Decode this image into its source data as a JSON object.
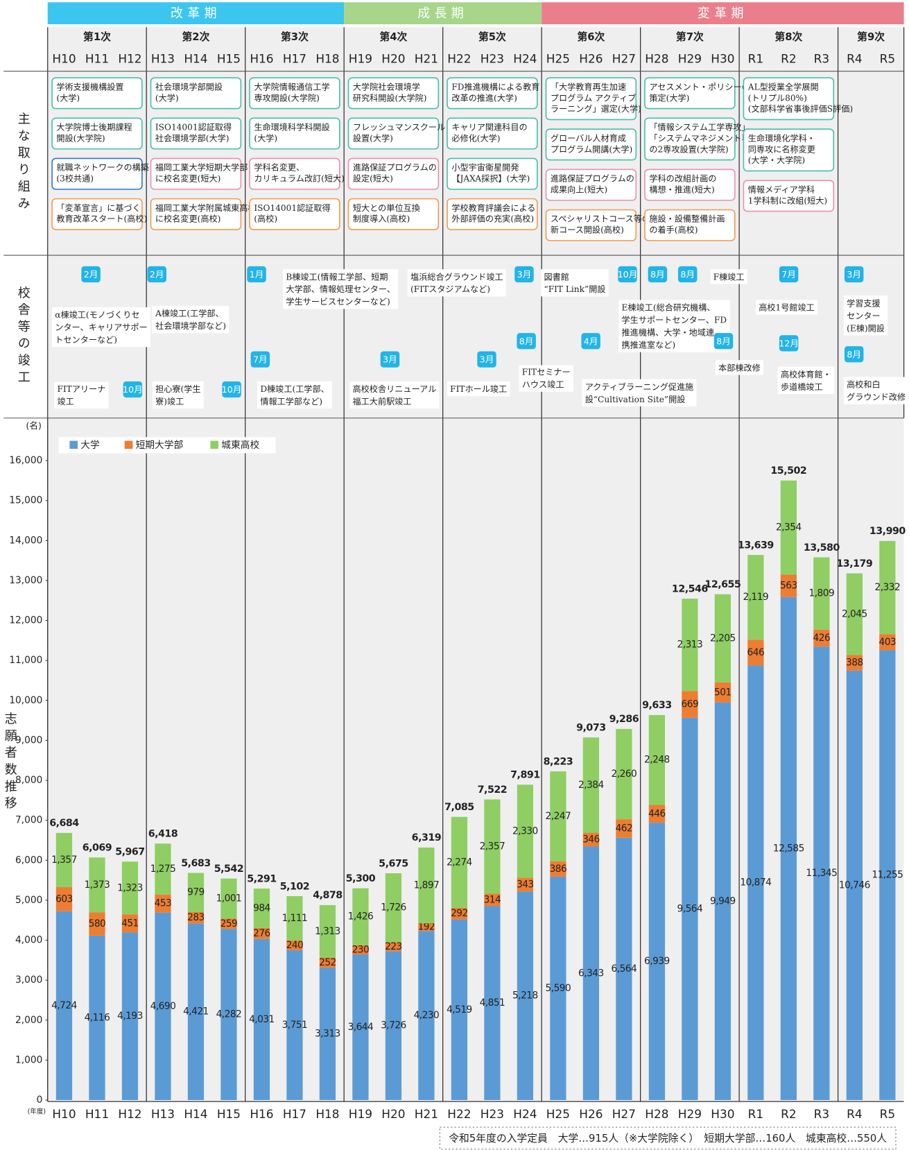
{
  "periods": [
    {
      "name": "改革期",
      "color": "#3cc6ef",
      "phases": [
        "第1次",
        "第2次",
        "第3次"
      ]
    },
    {
      "name": "成長期",
      "color": "#a7d58a",
      "phases": [
        "第4次",
        "第5次"
      ]
    },
    {
      "name": "変革期",
      "color": "#ea7f8b",
      "phases": [
        "第6次",
        "第7次",
        "第8次",
        "第9次"
      ]
    }
  ],
  "initiatives_label": "主な取り組み",
  "phases": [
    {
      "name": "第1次",
      "years": [
        "H10",
        "H11",
        "H12"
      ],
      "initiatives": [
        {
          "lines": [
            "学術支援機構設置",
            "(大学)"
          ],
          "color": "#45bfa9"
        },
        {
          "lines": [
            "大学院博士後期課程",
            "開設(大学院)"
          ],
          "color": "#45bfa9"
        },
        {
          "lines": [
            "就職ネットワークの構築",
            "(3校共通)"
          ],
          "color": "#2f78c2"
        },
        {
          "lines": [
            "「変革宣言」に基づく",
            "教育改革スタート(高校)"
          ],
          "color": "#f29a4a"
        }
      ]
    },
    {
      "name": "第2次",
      "years": [
        "H13",
        "H14",
        "H15"
      ],
      "initiatives": [
        {
          "lines": [
            "社会環境学部開設",
            "(大学)"
          ],
          "color": "#45bfa9"
        },
        {
          "lines": [
            "ISO14001認証取得",
            "社会環境学部(大学)"
          ],
          "color": "#45bfa9"
        },
        {
          "lines": [
            "福岡工業大学短期大学部",
            "に校名変更(短大)"
          ],
          "color": "#e98fb0"
        },
        {
          "lines": [
            "福岡工業大学附属城東高校",
            "に校名変更(高校)"
          ],
          "color": "#f29a4a"
        }
      ]
    },
    {
      "name": "第3次",
      "years": [
        "H16",
        "H17",
        "H18"
      ],
      "initiatives": [
        {
          "lines": [
            "大学院情報通信工学",
            "専攻開設(大学院)"
          ],
          "color": "#45bfa9"
        },
        {
          "lines": [
            "生命環境科学科開設",
            "(大学)"
          ],
          "color": "#45bfa9"
        },
        {
          "lines": [
            "学科名変更、",
            "カリキュラム改訂(短大)"
          ],
          "color": "#e98fb0"
        },
        {
          "lines": [
            "ISO14001認証取得",
            "(高校)"
          ],
          "color": "#f29a4a"
        }
      ]
    },
    {
      "name": "第4次",
      "years": [
        "H19",
        "H20",
        "H21"
      ],
      "initiatives": [
        {
          "lines": [
            "大学院社会環境学",
            "研究科開設(大学院)"
          ],
          "color": "#45bfa9"
        },
        {
          "lines": [
            "フレッシュマンスクール",
            "設置(大学)"
          ],
          "color": "#45bfa9"
        },
        {
          "lines": [
            "進路保証プログラムの",
            "設定(短大)"
          ],
          "color": "#e98fb0"
        },
        {
          "lines": [
            "短大との単位互換",
            "制度導入(高校)"
          ],
          "color": "#f29a4a"
        }
      ]
    },
    {
      "name": "第5次",
      "years": [
        "H22",
        "H23",
        "H24"
      ],
      "initiatives": [
        {
          "lines": [
            "FD推進機構による教育",
            "改革の推進(大学)"
          ],
          "color": "#45bfa9"
        },
        {
          "lines": [
            "キャリア関連科目の",
            "必修化(大学)"
          ],
          "color": "#45bfa9"
        },
        {
          "lines": [
            "小型宇宙衛星開発",
            "【JAXA採択】(大学)"
          ],
          "color": "#45bfa9"
        },
        {
          "lines": [
            "学校教育評議会による",
            "外部評価の充実(高校)"
          ],
          "color": "#f29a4a"
        }
      ]
    },
    {
      "name": "第6次",
      "years": [
        "H25",
        "H26",
        "H27"
      ],
      "initiatives": [
        {
          "lines": [
            "「大学教育再生加速",
            "プログラム アクティブ",
            "ラーニング」選定(大学)"
          ],
          "color": "#45bfa9"
        },
        {
          "lines": [
            "グローバル人材育成",
            "プログラム開講(大学)"
          ],
          "color": "#45bfa9"
        },
        {
          "lines": [
            "進路保証プログラムの",
            "成果向上(短大)"
          ],
          "color": "#e98fb0"
        },
        {
          "lines": [
            "スペシャリストコース等の",
            "新コース開設(高校)"
          ],
          "color": "#f29a4a"
        }
      ]
    },
    {
      "name": "第7次",
      "years": [
        "H28",
        "H29",
        "H30"
      ],
      "initiatives": [
        {
          "lines": [
            "アセスメント・ポリシーの",
            "策定(大学)"
          ],
          "color": "#45bfa9"
        },
        {
          "lines": [
            "「情報システム工学専攻」、",
            "「システムマネジメント専攻」",
            "の2専攻設置(大学院)"
          ],
          "color": "#45bfa9"
        },
        {
          "lines": [
            "学科の改組計画の",
            "構想・推進(短大)"
          ],
          "color": "#e98fb0"
        },
        {
          "lines": [
            "施設・設備整備計画",
            "の着手(高校)"
          ],
          "color": "#f29a4a"
        }
      ]
    },
    {
      "name": "第8次",
      "years": [
        "R1",
        "R2",
        "R3"
      ],
      "initiatives": [
        {
          "lines": [
            "AL型授業全学展開",
            "(トリプル80%)",
            "(文部科学省事後評価S評価)"
          ],
          "color": "#45bfa9"
        },
        {
          "lines": [
            "生命環境化学科・",
            "同専攻に名称変更",
            "(大学・大学院)"
          ],
          "color": "#45bfa9"
        },
        {
          "lines": [
            "情報メディア学科",
            "1学科制に改組(短大)"
          ],
          "color": "#e98fb0"
        }
      ]
    },
    {
      "name": "第9次",
      "years": [
        "R4",
        "R5"
      ],
      "initiatives": []
    }
  ],
  "construction": {
    "label": "校舎等の竣工",
    "items": [
      {
        "month": "2月",
        "lines": [
          "α棟竣工(モノづくりセ",
          "ンター、キャリアサポー",
          "トセンターなど)"
        ]
      },
      {
        "month": "10月",
        "lines": [
          "FITアリーナ",
          "竣工"
        ]
      },
      {
        "month": "2月",
        "lines": [
          "A棟竣工(工学部、",
          "社会環境学部など)"
        ]
      },
      {
        "month": "10月",
        "lines": [
          "担心寮(学生",
          "寮)竣工"
        ]
      },
      {
        "month": "1月",
        "lines": [
          "B棟竣工(情報工学部、短期",
          "大学部、情報処理センター、",
          "学生サービスセンターなど)"
        ]
      },
      {
        "month": "7月",
        "lines": [
          "D棟竣工(工学部、",
          "情報工学部など)"
        ]
      },
      {
        "month": "3月",
        "lines": [
          "塩浜総合グラウンド竣工",
          "(FITスタジアムなど)"
        ]
      },
      {
        "month": "3月",
        "lines": [
          "高校校舎リニューアル",
          "福工大前駅竣工"
        ]
      },
      {
        "month": "3月",
        "lines": [
          "FITホール竣工"
        ]
      },
      {
        "month": "8月",
        "lines": [
          "FITセミナー",
          "ハウス竣工"
        ]
      },
      {
        "month": "10月",
        "lines": [
          "図書館",
          "“FIT Link”開設"
        ]
      },
      {
        "month": "4月",
        "lines": [
          "アクティブラーニング促進施",
          "設“Cultivation Site”開設"
        ]
      },
      {
        "month": "8月",
        "lines": [
          "E棟竣工(総合研究機構、",
          "学生サポートセンター、FD",
          "推進機構、大学・地域連",
          "携推進室など)"
        ]
      },
      {
        "month": "8月",
        "lines": [
          "F棟竣工"
        ]
      },
      {
        "month": "8月",
        "lines": [
          "本部棟改修"
        ]
      },
      {
        "month": "7月",
        "lines": [
          "高校1号館竣工"
        ]
      },
      {
        "month": "12月",
        "lines": [
          "高校体育館・",
          "歩道橋竣工"
        ]
      },
      {
        "month": "3月",
        "lines": [
          "学習支援",
          "センター",
          "(E棟)開設"
        ]
      },
      {
        "month": "8月",
        "lines": [
          "高校和白",
          "グラウンド改修"
        ]
      }
    ]
  },
  "chart_data": {
    "type": "stacked_bar",
    "y_label": "志願者数推移",
    "y_unit": "(名)",
    "x_unit": "(年度)",
    "legend": "top-left",
    "grid": false,
    "categories": [
      "H10",
      "H11",
      "H12",
      "H13",
      "H14",
      "H15",
      "H16",
      "H17",
      "H18",
      "H19",
      "H20",
      "H21",
      "H22",
      "H23",
      "H24",
      "H25",
      "H26",
      "H27",
      "H28",
      "H29",
      "H30",
      "R1",
      "R2",
      "R3",
      "R4",
      "R5"
    ],
    "ylim": [
      0,
      17000
    ],
    "yticks": [
      0,
      {
        "value": 1000,
        "label": "1,000"
      },
      {
        "value": 2000,
        "label": "2,000"
      },
      {
        "value": 3000,
        "label": "3,000"
      },
      {
        "value": 4000,
        "label": "4,000"
      },
      {
        "value": 5000,
        "label": "5,000"
      },
      {
        "value": 6000,
        "label": "6,000"
      },
      {
        "value": 7000,
        "label": "7,000"
      },
      {
        "value": 8000,
        "label": "8,000"
      },
      {
        "value": 9000,
        "label": "9,000"
      },
      {
        "value": 10000,
        "label": "10,000"
      },
      {
        "value": 11000,
        "label": "11,000"
      },
      {
        "value": 12000,
        "label": "12,000"
      },
      {
        "value": 13000,
        "label": "13,000"
      },
      {
        "value": 14000,
        "label": "14,000"
      },
      {
        "value": 15000,
        "label": "15,000"
      },
      {
        "value": 16000,
        "label": "16,000"
      }
    ],
    "series": [
      {
        "name": "大学",
        "color": "#5b9bd5",
        "values": [
          4724,
          4116,
          4193,
          4690,
          4421,
          4282,
          4031,
          3751,
          3313,
          3644,
          3726,
          4230,
          4519,
          4851,
          5218,
          5590,
          6343,
          6564,
          6939,
          9564,
          9949,
          10874,
          12585,
          11345,
          10746,
          11255
        ],
        "value_labels": [
          "4,724",
          "4,116",
          "4,193",
          "4,690",
          "4,421",
          "4,282",
          "4,031",
          "3,751",
          "3,313",
          "3,644",
          "3,726",
          "4,230",
          "4,519",
          "4,851",
          "5,218",
          "5,590",
          "6,343",
          "6,564",
          "6,939",
          "9,564",
          "9,949",
          "10,874",
          "12,585",
          "11,345",
          "10,746",
          "11,255"
        ]
      },
      {
        "name": "短期大学部",
        "color": "#ed7d31",
        "values": [
          603,
          580,
          451,
          453,
          283,
          259,
          276,
          240,
          252,
          230,
          223,
          192,
          292,
          314,
          343,
          386,
          346,
          462,
          446,
          669,
          501,
          646,
          563,
          426,
          388,
          403
        ]
      },
      {
        "name": "城東高校",
        "color": "#8fce63",
        "values": [
          1357,
          1373,
          1323,
          1275,
          979,
          1001,
          984,
          1111,
          1313,
          1426,
          1726,
          1897,
          2274,
          2357,
          2330,
          2247,
          2384,
          2260,
          2248,
          2313,
          2205,
          2119,
          2354,
          1809,
          2045,
          2332
        ],
        "value_labels": [
          "1,357",
          "1,373",
          "1,323",
          "1,275",
          "979",
          "1,001",
          "984",
          "1,111",
          "1,313",
          "1,426",
          "1,726",
          "1,897",
          "2,274",
          "2,357",
          "2,330",
          "2,247",
          "2,384",
          "2,260",
          "2,248",
          "2,313",
          "2,205",
          "2,119",
          "2,354",
          "1,809",
          "2,045",
          "2,332"
        ]
      }
    ],
    "totals": [
      6684,
      6069,
      5967,
      6418,
      5683,
      5542,
      5291,
      5102,
      4878,
      5300,
      5675,
      6319,
      7085,
      7522,
      7891,
      8223,
      9073,
      9286,
      9633,
      12546,
      12655,
      13639,
      15502,
      13580,
      13179,
      13990
    ],
    "total_labels": [
      "6,684",
      "6,069",
      "5,967",
      "6,418",
      "5,683",
      "5,542",
      "5,291",
      "5,102",
      "4,878",
      "5,300",
      "5,675",
      "6,319",
      "7,085",
      "7,522",
      "7,891",
      "8,223",
      "9,073",
      "9,286",
      "9,633",
      "12,546",
      "12,655",
      "13,639",
      "15,502",
      "13,580",
      "13,179",
      "13,990"
    ]
  },
  "note": "令和5年度の入学定員　大学…915人（※大学院除く）　短期大学部…160人　城東高校…550人"
}
